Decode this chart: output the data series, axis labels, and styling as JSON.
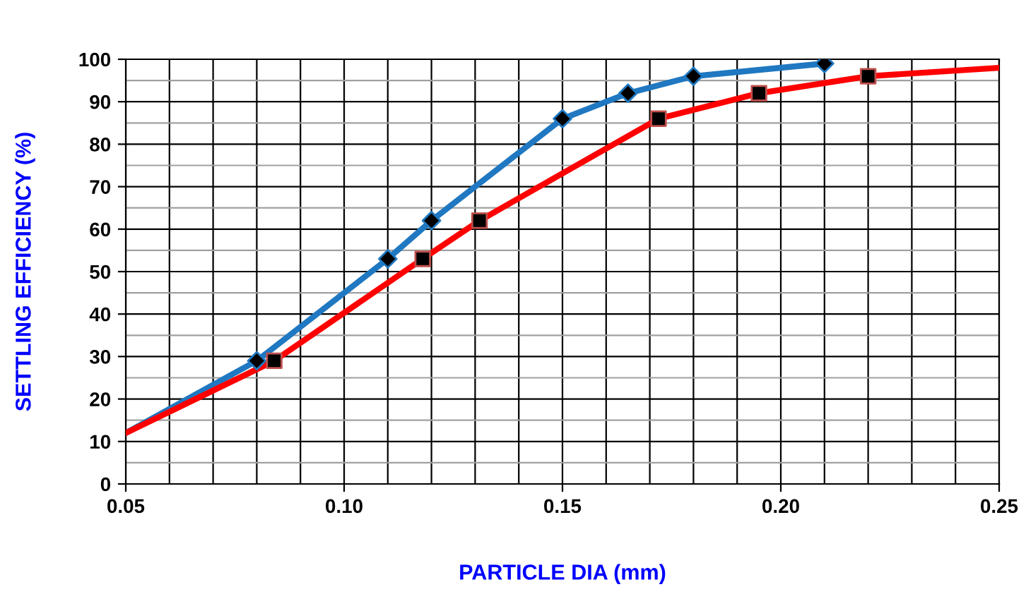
{
  "chart_data": {
    "type": "line",
    "xlabel": "PARTICLE DIA (mm)",
    "ylabel": "SETTLING EFFICIENCY (%)",
    "xlim": [
      0.05,
      0.25
    ],
    "ylim": [
      0,
      100
    ],
    "xticks": [
      {
        "value": 0.05,
        "label": "0.05"
      },
      {
        "value": 0.06,
        "label": null
      },
      {
        "value": 0.07,
        "label": null
      },
      {
        "value": 0.08,
        "label": null
      },
      {
        "value": 0.09,
        "label": null
      },
      {
        "value": 0.1,
        "label": "0.10"
      },
      {
        "value": 0.11,
        "label": null
      },
      {
        "value": 0.12,
        "label": null
      },
      {
        "value": 0.13,
        "label": null
      },
      {
        "value": 0.14,
        "label": null
      },
      {
        "value": 0.15,
        "label": "0.15"
      },
      {
        "value": 0.16,
        "label": null
      },
      {
        "value": 0.17,
        "label": null
      },
      {
        "value": 0.18,
        "label": null
      },
      {
        "value": 0.19,
        "label": null
      },
      {
        "value": 0.2,
        "label": "0.20"
      },
      {
        "value": 0.21,
        "label": null
      },
      {
        "value": 0.22,
        "label": null
      },
      {
        "value": 0.23,
        "label": null
      },
      {
        "value": 0.24,
        "label": null
      },
      {
        "value": 0.25,
        "label": "0.25"
      }
    ],
    "yticks": [
      0,
      {
        "value": 5,
        "label": null
      },
      10,
      {
        "value": 15,
        "label": null
      },
      20,
      {
        "value": 25,
        "label": null
      },
      30,
      {
        "value": 35,
        "label": null
      },
      40,
      {
        "value": 45,
        "label": null
      },
      50,
      {
        "value": 55,
        "label": null
      },
      60,
      {
        "value": 65,
        "label": null
      },
      70,
      {
        "value": 75,
        "label": null
      },
      80,
      {
        "value": 85,
        "label": null
      },
      90,
      {
        "value": 95,
        "label": null
      },
      100
    ],
    "grid": true,
    "legend": false,
    "series": [
      {
        "type": "line",
        "marker": "none",
        "color": "#1f78c1",
        "x": [
          0.05,
          0.08,
          0.11,
          0.12,
          0.15,
          0.165,
          0.18,
          0.21
        ],
        "values": [
          12,
          29,
          53,
          62,
          86,
          92,
          96,
          99
        ]
      },
      {
        "type": "line",
        "marker": "none",
        "color": "#ff0000",
        "x": [
          0.05,
          0.084,
          0.118,
          0.131,
          0.172,
          0.195,
          0.22,
          0.25
        ],
        "values": [
          12,
          29,
          53,
          62,
          86,
          92,
          96,
          98
        ]
      },
      {
        "type": "scatter",
        "marker": "diamond",
        "color": "#000000",
        "x": [
          0.08,
          0.11,
          0.12,
          0.15,
          0.165,
          0.18,
          0.21
        ],
        "values": [
          29,
          53,
          62,
          86,
          92,
          96,
          99
        ]
      },
      {
        "type": "scatter",
        "marker": "square",
        "color": "#000000",
        "x": [
          0.084,
          0.118,
          0.131,
          0.172,
          0.195,
          0.22
        ],
        "values": [
          29,
          53,
          62,
          86,
          92,
          96
        ]
      }
    ]
  }
}
